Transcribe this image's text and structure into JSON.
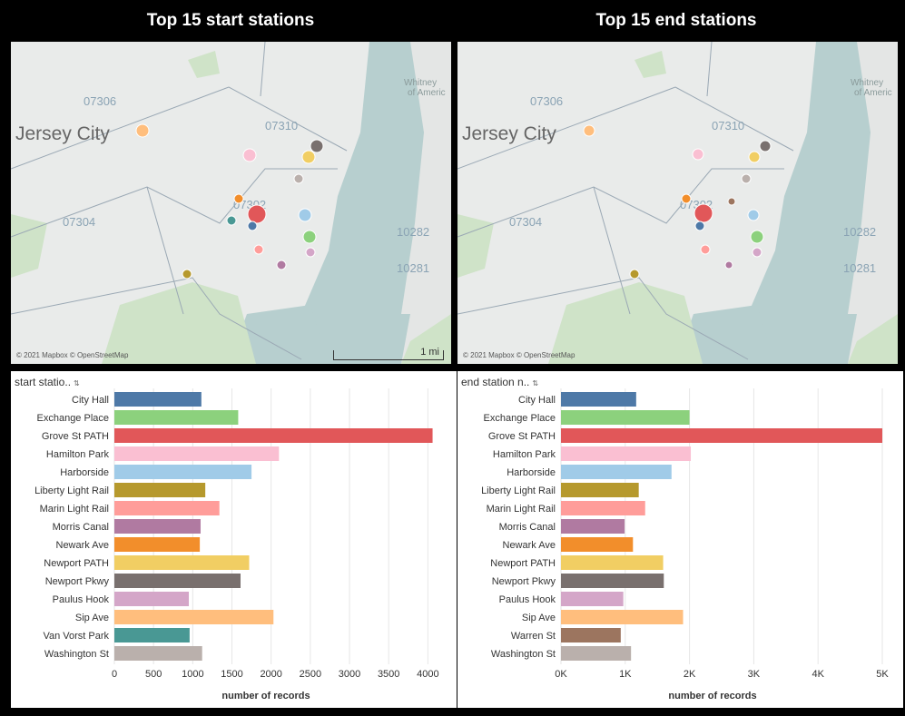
{
  "titles": {
    "left": "Top 15 start stations",
    "right": "Top 15 end stations"
  },
  "map": {
    "attribution": "© 2021 Mapbox © OpenStreetMap",
    "scale_label": "1 mi",
    "place_labels": [
      "Jersey City",
      "07306",
      "07310",
      "07304",
      "07302",
      "10282",
      "10281",
      "Whitney",
      "of Americ"
    ],
    "water_color": "#b7cfcf",
    "land_color": "#e9ebea",
    "park_color": "#cfe3c8"
  },
  "start_panel": {
    "header": "start statio..",
    "sort_icon": "sort-descending-icon",
    "xlabel": "number of records"
  },
  "end_panel": {
    "header": "end station n..",
    "sort_icon": "sort-descending-icon",
    "xlabel": "number of records"
  },
  "chart_data": [
    {
      "type": "bar",
      "orientation": "horizontal",
      "title": "Top 15 start stations",
      "xlabel": "number of records",
      "categories": [
        "City Hall",
        "Exchange Place",
        "Grove St PATH",
        "Hamilton Park",
        "Harborside",
        "Liberty Light Rail",
        "Marin Light Rail",
        "Morris Canal",
        "Newark Ave",
        "Newport PATH",
        "Newport Pkwy",
        "Paulus Hook",
        "Sip Ave",
        "Van Vorst Park",
        "Washington St"
      ],
      "values": [
        1110,
        1580,
        4060,
        2100,
        1750,
        1160,
        1340,
        1100,
        1090,
        1720,
        1610,
        950,
        2030,
        960,
        1120
      ],
      "colors": [
        "#4e79a7",
        "#8cd17d",
        "#e15759",
        "#fabfd2",
        "#a0cbe8",
        "#b6992d",
        "#ff9d9a",
        "#b07aa1",
        "#f28e2b",
        "#f1ce63",
        "#79706e",
        "#d4a6c8",
        "#ffbe7d",
        "#499894",
        "#bab0ac"
      ],
      "xlim": [
        0,
        4100
      ],
      "ticks": [
        0,
        500,
        1000,
        1500,
        2000,
        2500,
        3000,
        3500,
        4000
      ],
      "tick_labels": [
        "0",
        "500",
        "1000",
        "1500",
        "2000",
        "2500",
        "3000",
        "3500",
        "4000"
      ],
      "grid": true
    },
    {
      "type": "bar",
      "orientation": "horizontal",
      "title": "Top 15 end stations",
      "xlabel": "number of records",
      "categories": [
        "City Hall",
        "Exchange Place",
        "Grove St PATH",
        "Hamilton Park",
        "Harborside",
        "Liberty Light Rail",
        "Marin Light Rail",
        "Morris Canal",
        "Newark Ave",
        "Newport PATH",
        "Newport Pkwy",
        "Paulus Hook",
        "Sip Ave",
        "Warren St",
        "Washington St"
      ],
      "values": [
        1170,
        2000,
        5000,
        2020,
        1720,
        1210,
        1310,
        990,
        1120,
        1590,
        1600,
        970,
        1900,
        930,
        1090
      ],
      "colors": [
        "#4e79a7",
        "#8cd17d",
        "#e15759",
        "#fabfd2",
        "#a0cbe8",
        "#b6992d",
        "#ff9d9a",
        "#b07aa1",
        "#f28e2b",
        "#f1ce63",
        "#79706e",
        "#d4a6c8",
        "#ffbe7d",
        "#9c755f",
        "#bab0ac"
      ],
      "xlim": [
        0,
        5000
      ],
      "ticks": [
        0,
        1000,
        2000,
        3000,
        4000,
        5000
      ],
      "tick_labels": [
        "0K",
        "1K",
        "2K",
        "3K",
        "4K",
        "5K"
      ],
      "grid": true
    }
  ]
}
